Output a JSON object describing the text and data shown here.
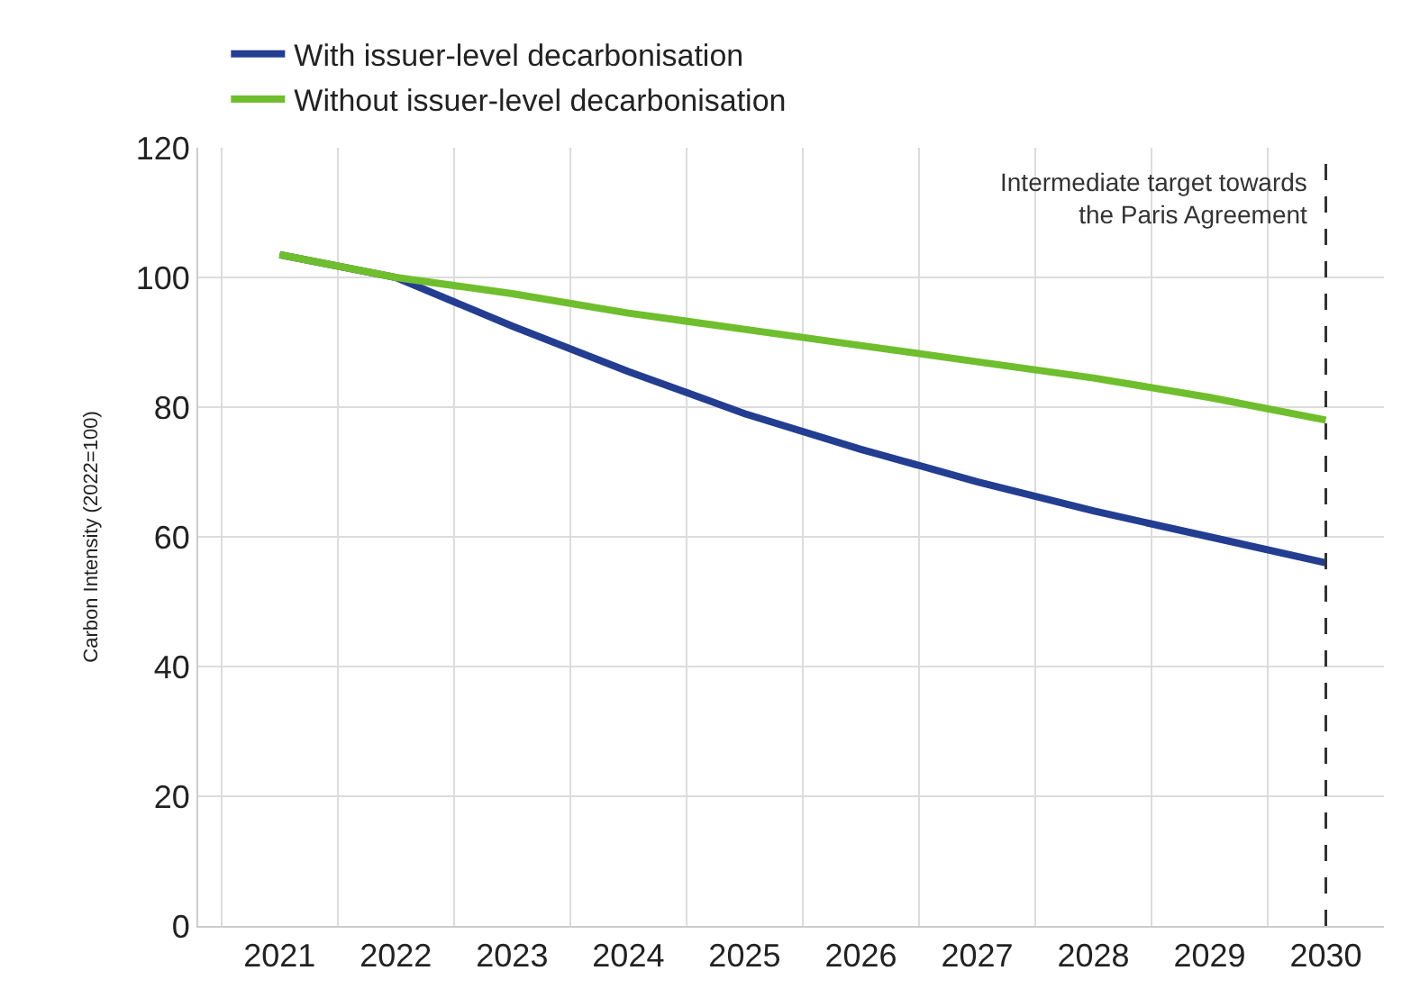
{
  "chart_data": {
    "type": "line",
    "ylabel": "Carbon Intensity (2022=100)",
    "categories": [
      "2021",
      "2022",
      "2023",
      "2024",
      "2025",
      "2026",
      "2027",
      "2028",
      "2029",
      "2030"
    ],
    "series": [
      {
        "name": "With issuer-level decarbonisation",
        "color": "#233d91",
        "values": [
          103.5,
          100,
          92.5,
          85.5,
          79,
          73.5,
          68.5,
          64,
          60,
          56
        ]
      },
      {
        "name": "Without issuer-level decarbonisation",
        "color": "#6fbe2d",
        "values": [
          103.5,
          100,
          97.5,
          94.5,
          92,
          89.5,
          87,
          84.5,
          81.5,
          78
        ]
      }
    ],
    "ylim": [
      0,
      120
    ],
    "yticks": [
      0,
      20,
      40,
      60,
      80,
      100,
      120
    ],
    "grid": true,
    "legend": "top left",
    "marker": "none",
    "line_style": "solid",
    "ref_lines": [
      {
        "axis": "x",
        "value": "2030",
        "label": "Intermediate target towards\nthe Paris Agreement",
        "color": "#333333",
        "line_style": "dashed"
      }
    ]
  }
}
